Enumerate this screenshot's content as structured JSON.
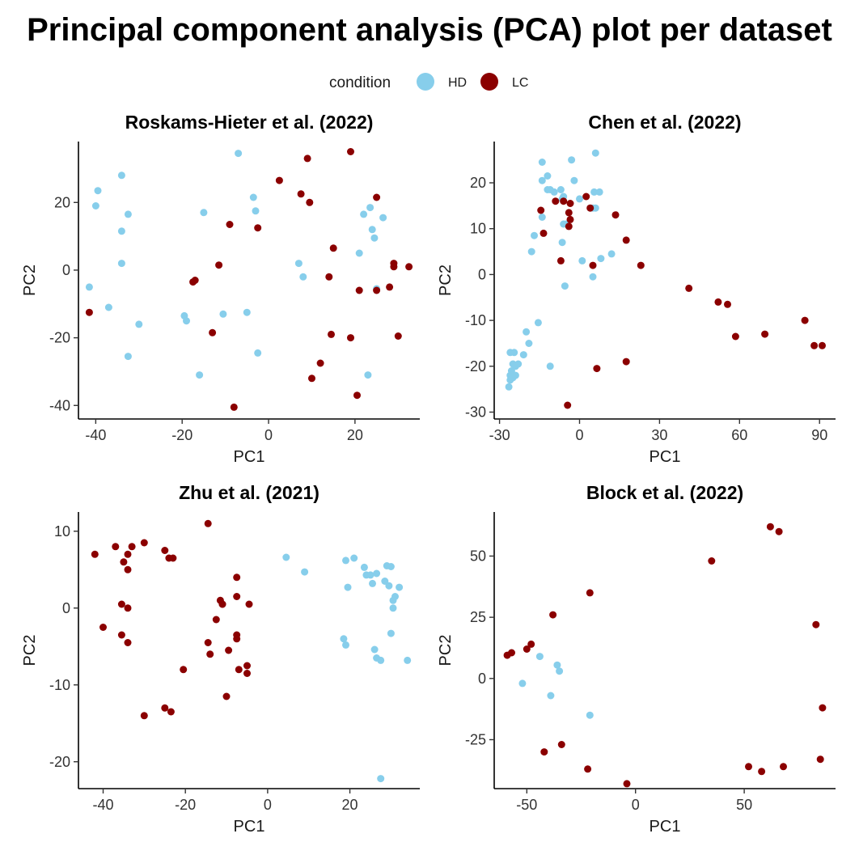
{
  "title": "Principal component analysis (PCA) plot per dataset",
  "legend": {
    "title": "condition",
    "entries": [
      {
        "label": "HD",
        "color": "#87CEEB"
      },
      {
        "label": "LC",
        "color": "#8B0000"
      }
    ]
  },
  "colors": {
    "HD": "#87CEEB",
    "LC": "#8B0000"
  },
  "chart_data": [
    {
      "type": "scatter",
      "title": "Roskams-Hieter et al. (2022)",
      "xlabel": "PC1",
      "ylabel": "PC2",
      "xlim": [
        -44,
        35
      ],
      "ylim": [
        -44,
        38
      ],
      "xticks": [
        -40,
        -20,
        0,
        20
      ],
      "yticks": [
        -40,
        -20,
        0,
        20
      ],
      "series": [
        {
          "name": "HD",
          "points": [
            [
              -39.5,
              23.5
            ],
            [
              -40,
              19
            ],
            [
              -34,
              28
            ],
            [
              -32.5,
              16.5
            ],
            [
              -34,
              11.5
            ],
            [
              -34,
              2
            ],
            [
              -41.5,
              -5
            ],
            [
              -37,
              -11
            ],
            [
              -30,
              -16
            ],
            [
              -32.5,
              -25.5
            ],
            [
              -19.5,
              -13.5
            ],
            [
              -19,
              -15
            ],
            [
              -15,
              17
            ],
            [
              -16,
              -31
            ],
            [
              -10.5,
              -13
            ],
            [
              -7,
              34.5
            ],
            [
              -3.5,
              21.5
            ],
            [
              -3,
              17.5
            ],
            [
              -5,
              -12.5
            ],
            [
              -2.5,
              -24.5
            ],
            [
              7,
              2
            ],
            [
              8,
              -2
            ],
            [
              21,
              5
            ],
            [
              22,
              16.5
            ],
            [
              23.5,
              18.5
            ],
            [
              24,
              12
            ],
            [
              24.5,
              9.5
            ],
            [
              26.5,
              15.5
            ],
            [
              25,
              -5.5
            ],
            [
              23,
              -31
            ]
          ]
        },
        {
          "name": "LC",
          "points": [
            [
              -41.5,
              -12.5
            ],
            [
              -17,
              -3
            ],
            [
              -17.5,
              -3.5
            ],
            [
              -11.5,
              1.5
            ],
            [
              -9,
              13.5
            ],
            [
              -13,
              -18.5
            ],
            [
              -2.5,
              12.5
            ],
            [
              -8,
              -40.5
            ],
            [
              2.5,
              26.5
            ],
            [
              7.5,
              22.5
            ],
            [
              9,
              33
            ],
            [
              9.5,
              20
            ],
            [
              10,
              -32
            ],
            [
              12,
              -27.5
            ],
            [
              14,
              -2
            ],
            [
              14.5,
              -19
            ],
            [
              15,
              6.5
            ],
            [
              19,
              35
            ],
            [
              19,
              -20
            ],
            [
              20.5,
              -37
            ],
            [
              21,
              -6
            ],
            [
              25,
              21.5
            ],
            [
              25,
              -6
            ],
            [
              28,
              -5
            ],
            [
              29,
              1
            ],
            [
              29,
              2
            ],
            [
              30,
              -19.5
            ],
            [
              32.5,
              1
            ]
          ]
        }
      ]
    },
    {
      "type": "scatter",
      "title": "Chen et al. (2022)",
      "xlabel": "PC1",
      "ylabel": "PC2",
      "xlim": [
        -32,
        96
      ],
      "ylim": [
        -31.5,
        29
      ],
      "xticks": [
        -30,
        0,
        30,
        60,
        90
      ],
      "yticks": [
        -30,
        -20,
        -10,
        0,
        10,
        20
      ],
      "series": [
        {
          "name": "HD",
          "points": [
            [
              -14,
              24.5
            ],
            [
              -14,
              20.5
            ],
            [
              -12,
              21.5
            ],
            [
              -12,
              18.5
            ],
            [
              -11,
              18.5
            ],
            [
              -9.5,
              18
            ],
            [
              -7,
              18.5
            ],
            [
              -6.5,
              16.5
            ],
            [
              -6,
              17
            ],
            [
              -3,
              25
            ],
            [
              -2,
              20.5
            ],
            [
              6,
              26.5
            ],
            [
              5,
              14.5
            ],
            [
              6,
              14.5
            ],
            [
              5.5,
              18
            ],
            [
              7.5,
              18
            ],
            [
              0,
              16.5
            ],
            [
              -6,
              11
            ],
            [
              -6.5,
              7
            ],
            [
              -5.5,
              -2.5
            ],
            [
              -14,
              12.5
            ],
            [
              -17,
              8.5
            ],
            [
              -18,
              5
            ],
            [
              -15.5,
              -10.5
            ],
            [
              -20,
              -12.5
            ],
            [
              -19,
              -15
            ],
            [
              -21,
              -17.5
            ],
            [
              -24.5,
              -17
            ],
            [
              -26,
              -17
            ],
            [
              -25,
              -19.5
            ],
            [
              -24,
              -20
            ],
            [
              -23,
              -19.5
            ],
            [
              -25.5,
              -21
            ],
            [
              -24,
              -22
            ],
            [
              -26,
              -22
            ],
            [
              -25,
              -22.5
            ],
            [
              -26,
              -23
            ],
            [
              -26.5,
              -24.5
            ],
            [
              -11,
              -20
            ],
            [
              1,
              3
            ],
            [
              5,
              -0.5
            ],
            [
              8,
              3.5
            ],
            [
              12,
              4.5
            ],
            [
              -5,
              11
            ]
          ]
        },
        {
          "name": "LC",
          "points": [
            [
              -14.5,
              14
            ],
            [
              -13.5,
              9
            ],
            [
              -9,
              16
            ],
            [
              -6,
              16
            ],
            [
              -4,
              13.5
            ],
            [
              -4,
              10.5
            ],
            [
              -3.5,
              15.5
            ],
            [
              -3.5,
              12
            ],
            [
              2.5,
              17
            ],
            [
              4,
              14.5
            ],
            [
              13.5,
              13
            ],
            [
              -7,
              3
            ],
            [
              5,
              2
            ],
            [
              17.5,
              7.5
            ],
            [
              23,
              2
            ],
            [
              41,
              -3
            ],
            [
              52,
              -6
            ],
            [
              55.5,
              -6.5
            ],
            [
              58.5,
              -13.5
            ],
            [
              69.5,
              -13
            ],
            [
              84.5,
              -10
            ],
            [
              88,
              -15.5
            ],
            [
              91,
              -15.5
            ],
            [
              17.5,
              -19
            ],
            [
              6.5,
              -20.5
            ],
            [
              -4.5,
              -28.5
            ]
          ]
        }
      ]
    },
    {
      "type": "scatter",
      "title": "Zhu et al. (2021)",
      "xlabel": "PC1",
      "ylabel": "PC2",
      "xlim": [
        -46,
        37
      ],
      "ylim": [
        -23.5,
        12.5
      ],
      "xticks": [
        -40,
        -20,
        0,
        20
      ],
      "yticks": [
        -20,
        -10,
        0,
        10
      ],
      "series": [
        {
          "name": "HD",
          "points": [
            [
              4.5,
              6.6
            ],
            [
              9,
              4.7
            ],
            [
              19,
              6.2
            ],
            [
              21,
              6.5
            ],
            [
              19.5,
              2.7
            ],
            [
              23.5,
              5.3
            ],
            [
              24,
              4.3
            ],
            [
              25,
              4.3
            ],
            [
              26.5,
              4.5
            ],
            [
              25.5,
              3.2
            ],
            [
              28.5,
              3.5
            ],
            [
              29,
              5.5
            ],
            [
              30,
              5.4
            ],
            [
              29.5,
              2.9
            ],
            [
              32,
              2.7
            ],
            [
              31,
              1.5
            ],
            [
              30.5,
              1
            ],
            [
              30.5,
              0
            ],
            [
              30,
              -3.3
            ],
            [
              18.5,
              -4
            ],
            [
              19,
              -4.8
            ],
            [
              26,
              -5.4
            ],
            [
              26.5,
              -6.5
            ],
            [
              27.5,
              -6.8
            ],
            [
              34,
              -6.8
            ],
            [
              27.5,
              -22.2
            ]
          ]
        },
        {
          "name": "LC",
          "points": [
            [
              -42,
              7
            ],
            [
              -37,
              8
            ],
            [
              -35,
              6
            ],
            [
              -34,
              7
            ],
            [
              -33,
              8
            ],
            [
              -30,
              8.5
            ],
            [
              -34,
              5
            ],
            [
              -25,
              7.5
            ],
            [
              -24,
              6.5
            ],
            [
              -23,
              6.5
            ],
            [
              -14.5,
              11
            ],
            [
              -35.5,
              0.5
            ],
            [
              -34,
              0
            ],
            [
              -40,
              -2.5
            ],
            [
              -35.5,
              -3.5
            ],
            [
              -34,
              -4.5
            ],
            [
              -12.5,
              -1.5
            ],
            [
              -11.5,
              1
            ],
            [
              -11,
              0.5
            ],
            [
              -11,
              0.5
            ],
            [
              -7.5,
              4
            ],
            [
              -7.5,
              1.5
            ],
            [
              -4.5,
              0.5
            ],
            [
              -14.5,
              -4.5
            ],
            [
              -14,
              -6
            ],
            [
              -9.5,
              -5.5
            ],
            [
              -7.5,
              -3.5
            ],
            [
              -7.5,
              -4
            ],
            [
              -7,
              -8
            ],
            [
              -5,
              -7.5
            ],
            [
              -5,
              -8.5
            ],
            [
              -20.5,
              -8
            ],
            [
              -10,
              -11.5
            ],
            [
              -25,
              -13
            ],
            [
              -23.5,
              -13.5
            ],
            [
              -30,
              -14
            ]
          ]
        }
      ]
    },
    {
      "type": "scatter",
      "title": "Block et al. (2022)",
      "xlabel": "PC1",
      "ylabel": "PC2",
      "xlim": [
        -65,
        92
      ],
      "ylim": [
        -45,
        68
      ],
      "xticks": [
        -50,
        0,
        50
      ],
      "yticks": [
        -25,
        0,
        25,
        50
      ],
      "series": [
        {
          "name": "HD",
          "points": [
            [
              -52,
              -2
            ],
            [
              -44,
              9
            ],
            [
              -36,
              5.5
            ],
            [
              -35,
              3
            ],
            [
              -39,
              -7
            ],
            [
              -21,
              -15
            ]
          ]
        },
        {
          "name": "LC",
          "points": [
            [
              -59,
              9.5
            ],
            [
              -57,
              10.5
            ],
            [
              -50,
              12
            ],
            [
              -48,
              14
            ],
            [
              -38,
              26
            ],
            [
              -21,
              35
            ],
            [
              35,
              48
            ],
            [
              62,
              62
            ],
            [
              66,
              60
            ],
            [
              83,
              22
            ],
            [
              86,
              -12
            ],
            [
              -42,
              -30
            ],
            [
              -34,
              -27
            ],
            [
              -22,
              -37
            ],
            [
              -4,
              -43
            ],
            [
              52,
              -36
            ],
            [
              58,
              -38
            ],
            [
              68,
              -36
            ],
            [
              85,
              -33
            ]
          ]
        }
      ]
    }
  ]
}
